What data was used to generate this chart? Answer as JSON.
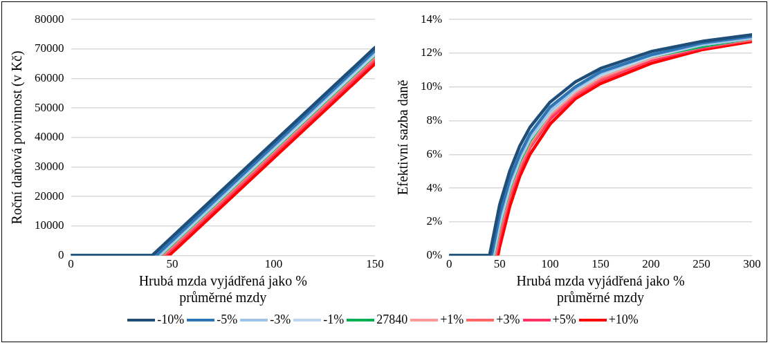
{
  "chart_data": [
    {
      "type": "line",
      "xlabel": "Hrubá mzda vyjádřená jako % průměrné mzdy",
      "ylabel": "Roční daňová povinnost (v Kč)",
      "xlim": [
        0,
        150
      ],
      "xticks": [
        0,
        50,
        100,
        150
      ],
      "ylim": [
        0,
        80000
      ],
      "yticks": [
        0,
        10000,
        20000,
        30000,
        40000,
        50000,
        60000,
        70000,
        80000
      ],
      "grid": "y",
      "legend": "bottom",
      "marker": "none",
      "series": [
        {
          "name": "-10%",
          "color": "#1f4e79",
          "x": [
            0,
            40,
            150
          ],
          "values": [
            0,
            0,
            70500
          ]
        },
        {
          "name": "-5%",
          "color": "#2e75b6",
          "x": [
            0,
            42,
            150
          ],
          "values": [
            0,
            0,
            69500
          ]
        },
        {
          "name": "-3%",
          "color": "#9dc3e6",
          "x": [
            0,
            43,
            150
          ],
          "values": [
            0,
            0,
            69000
          ]
        },
        {
          "name": "-1%",
          "color": "#bdd7ee",
          "x": [
            0,
            43.6,
            150
          ],
          "values": [
            0,
            0,
            68300
          ]
        },
        {
          "name": "27840",
          "color": "#00b050",
          "x": [
            0,
            44,
            150
          ],
          "values": [
            0,
            0,
            68000
          ]
        },
        {
          "name": "+1%",
          "color": "#ff9999",
          "x": [
            0,
            44.4,
            150
          ],
          "values": [
            0,
            0,
            67700
          ]
        },
        {
          "name": "+3%",
          "color": "#ff6666",
          "x": [
            0,
            45.3,
            150
          ],
          "values": [
            0,
            0,
            67000
          ]
        },
        {
          "name": "+5%",
          "color": "#ff3366",
          "x": [
            0,
            46.2,
            150
          ],
          "values": [
            0,
            0,
            66300
          ]
        },
        {
          "name": "+10%",
          "color": "#ff0000",
          "x": [
            0,
            48.4,
            150
          ],
          "values": [
            0,
            0,
            65000
          ]
        }
      ]
    },
    {
      "type": "line",
      "xlabel": "Hrubá mzda vyjádřená jako % průměrné mzdy",
      "ylabel": "Efektivní sazba daně",
      "xlim": [
        0,
        300
      ],
      "xticks": [
        0,
        50,
        100,
        150,
        200,
        250,
        300
      ],
      "ylim": [
        0,
        14
      ],
      "yticks": [
        {
          "value": 0,
          "label": "0%"
        },
        {
          "value": 2,
          "label": "2%"
        },
        {
          "value": 4,
          "label": "4%"
        },
        {
          "value": 6,
          "label": "6%"
        },
        {
          "value": 8,
          "label": "8%"
        },
        {
          "value": 10,
          "label": "10%"
        },
        {
          "value": 12,
          "label": "12%"
        },
        {
          "value": 14,
          "label": "14%"
        }
      ],
      "grid": "y",
      "legend": false,
      "marker": "none",
      "series": [
        {
          "color": "#1f4e79",
          "x": [
            0,
            40,
            50,
            60,
            70,
            80,
            100,
            125,
            150,
            200,
            250,
            300
          ],
          "values": [
            0,
            0,
            3.0,
            5.0,
            6.5,
            7.6,
            9.1,
            10.3,
            11.1,
            12.1,
            12.7,
            13.1
          ]
        },
        {
          "color": "#2e75b6",
          "x": [
            0,
            42,
            50,
            60,
            70,
            80,
            100,
            125,
            150,
            200,
            250,
            300
          ],
          "values": [
            0,
            0,
            2.4,
            4.5,
            6.0,
            7.2,
            8.8,
            10.0,
            10.9,
            11.9,
            12.6,
            13.0
          ]
        },
        {
          "color": "#9dc3e6",
          "x": [
            0,
            43,
            50,
            60,
            70,
            80,
            100,
            125,
            150,
            200,
            250,
            300
          ],
          "values": [
            0,
            0,
            2.1,
            4.3,
            5.8,
            7.0,
            8.6,
            9.9,
            10.8,
            11.9,
            12.5,
            12.9
          ]
        },
        {
          "color": "#bdd7ee",
          "x": [
            0,
            43.6,
            50,
            60,
            70,
            80,
            100,
            125,
            150,
            200,
            250,
            300
          ],
          "values": [
            0,
            0,
            1.9,
            4.1,
            5.7,
            6.9,
            8.5,
            9.8,
            10.7,
            11.8,
            12.5,
            12.9
          ]
        },
        {
          "color": "#00b050",
          "x": [
            0,
            44,
            50,
            60,
            70,
            80,
            100,
            125,
            150,
            200,
            250,
            300
          ],
          "values": [
            0,
            0,
            1.8,
            4.0,
            5.6,
            6.8,
            8.5,
            9.8,
            10.7,
            11.8,
            12.4,
            12.9
          ]
        },
        {
          "color": "#ff9999",
          "x": [
            0,
            44.4,
            50,
            60,
            70,
            80,
            100,
            125,
            150,
            200,
            250,
            300
          ],
          "values": [
            0,
            0,
            1.7,
            3.9,
            5.5,
            6.7,
            8.4,
            9.7,
            10.6,
            11.7,
            12.4,
            12.9
          ]
        },
        {
          "color": "#ff6666",
          "x": [
            0,
            45.3,
            50,
            60,
            70,
            80,
            100,
            125,
            150,
            200,
            250,
            300
          ],
          "values": [
            0,
            0,
            1.4,
            3.7,
            5.3,
            6.5,
            8.3,
            9.6,
            10.5,
            11.7,
            12.4,
            12.8
          ]
        },
        {
          "color": "#ff3366",
          "x": [
            0,
            46.2,
            50,
            60,
            70,
            80,
            100,
            125,
            150,
            200,
            250,
            300
          ],
          "values": [
            0,
            0,
            1.1,
            3.5,
            5.1,
            6.4,
            8.1,
            9.5,
            10.4,
            11.6,
            12.3,
            12.8
          ]
        },
        {
          "color": "#ff0000",
          "x": [
            0,
            48.4,
            50,
            60,
            70,
            80,
            100,
            125,
            150,
            200,
            250,
            300
          ],
          "values": [
            0,
            0,
            0.5,
            2.9,
            4.7,
            6.0,
            7.8,
            9.3,
            10.2,
            11.4,
            12.2,
            12.7
          ]
        }
      ]
    }
  ]
}
